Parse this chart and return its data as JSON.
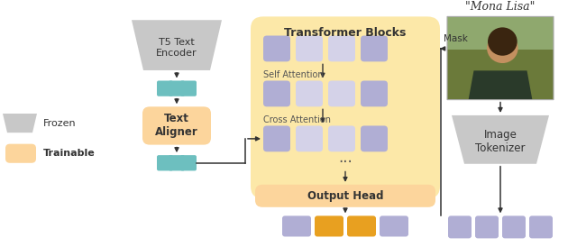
{
  "bg_color": "#ffffff",
  "frozen_color": "#c8c8c8",
  "trainable_color": "#fcd59c",
  "teal_color": "#6dbfbf",
  "purple_color": "#b0aed4",
  "purple_light": "#d4d2e8",
  "orange_color": "#e8a020",
  "transformer_bg": "#fce8a8",
  "arrow_color": "#333333",
  "text_color": "#333333",
  "label_frozen": "Frozen",
  "label_trainable": "Trainable",
  "label_t5": "T5 Text\nEncoder",
  "label_text_aligner": "Text\nAligner",
  "label_transformer": "Transformer Blocks",
  "label_self_attn": "Self Attention",
  "label_cross_attn": "Cross Attention",
  "label_output_head": "Output Head",
  "label_image_tokenizer": "Image\nTokenizer",
  "label_mona_lisa": "\"Mona Lisa\"",
  "label_mask": "Mask"
}
